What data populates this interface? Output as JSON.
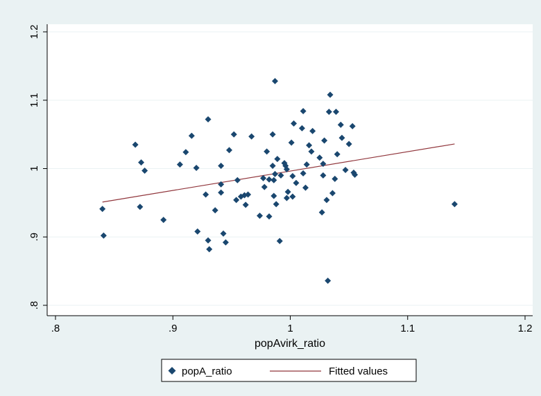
{
  "chart_data": {
    "type": "scatter",
    "title": "",
    "xlabel": "popAvirk_ratio",
    "ylabel": "",
    "xlim": [
      0.8,
      1.2
    ],
    "ylim": [
      0.8,
      1.2
    ],
    "x_ticks": [
      0.8,
      0.9,
      1.0,
      1.1,
      1.2
    ],
    "x_tick_labels": [
      ".8",
      ".9",
      "1",
      "1.1",
      "1.2"
    ],
    "y_ticks": [
      0.8,
      0.9,
      1.0,
      1.1,
      1.2
    ],
    "y_tick_labels": [
      ".8",
      ".9",
      "1",
      "1.1",
      "1.2"
    ],
    "grid": "horizontal",
    "legend_position": "bottom",
    "colors": {
      "background": "#eaf2f3",
      "plot_area": "#ffffff",
      "markers": "#1a476f",
      "fit_line": "#90353b",
      "grid": "#eaf2f3"
    },
    "series": [
      {
        "name": "popA_ratio",
        "kind": "scatter",
        "marker": "diamond",
        "points": [
          [
            0.84,
            0.941
          ],
          [
            0.841,
            0.902
          ],
          [
            0.868,
            1.035
          ],
          [
            0.872,
            0.944
          ],
          [
            0.873,
            1.009
          ],
          [
            0.876,
            0.997
          ],
          [
            0.892,
            0.925
          ],
          [
            0.906,
            1.006
          ],
          [
            0.911,
            1.024
          ],
          [
            0.916,
            1.048
          ],
          [
            0.92,
            1.001
          ],
          [
            0.921,
            0.908
          ],
          [
            0.928,
            0.962
          ],
          [
            0.93,
            1.072
          ],
          [
            0.93,
            0.895
          ],
          [
            0.931,
            0.882
          ],
          [
            0.936,
            0.939
          ],
          [
            0.941,
            1.004
          ],
          [
            0.941,
            0.977
          ],
          [
            0.941,
            0.965
          ],
          [
            0.943,
            0.905
          ],
          [
            0.945,
            0.892
          ],
          [
            0.948,
            1.027
          ],
          [
            0.952,
            1.05
          ],
          [
            0.954,
            0.954
          ],
          [
            0.955,
            0.983
          ],
          [
            0.958,
            0.959
          ],
          [
            0.961,
            0.961
          ],
          [
            0.962,
            0.947
          ],
          [
            0.964,
            0.962
          ],
          [
            0.967,
            1.047
          ],
          [
            0.974,
            0.931
          ],
          [
            0.977,
            0.986
          ],
          [
            0.978,
            0.973
          ],
          [
            0.98,
            1.025
          ],
          [
            0.982,
            0.984
          ],
          [
            0.982,
            0.93
          ],
          [
            0.985,
            1.05
          ],
          [
            0.985,
            1.004
          ],
          [
            0.986,
            0.983
          ],
          [
            0.986,
            0.96
          ],
          [
            0.987,
            1.128
          ],
          [
            0.987,
            0.992
          ],
          [
            0.988,
            0.948
          ],
          [
            0.989,
            1.014
          ],
          [
            0.991,
            0.894
          ],
          [
            0.992,
            0.99
          ],
          [
            0.995,
            1.008
          ],
          [
            0.996,
            1.004
          ],
          [
            0.997,
            0.999
          ],
          [
            0.997,
            0.957
          ],
          [
            0.998,
            0.966
          ],
          [
            1.001,
            1.038
          ],
          [
            1.002,
            0.959
          ],
          [
            1.002,
            0.989
          ],
          [
            1.003,
            1.066
          ],
          [
            1.005,
            0.979
          ],
          [
            1.01,
            1.059
          ],
          [
            1.011,
            0.993
          ],
          [
            1.011,
            1.084
          ],
          [
            1.013,
            0.972
          ],
          [
            1.014,
            1.006
          ],
          [
            1.016,
            1.034
          ],
          [
            1.018,
            1.025
          ],
          [
            1.019,
            1.055
          ],
          [
            1.025,
            1.016
          ],
          [
            1.027,
            0.936
          ],
          [
            1.028,
            1.007
          ],
          [
            1.028,
            0.99
          ],
          [
            1.029,
            1.041
          ],
          [
            1.031,
            0.954
          ],
          [
            1.032,
            0.836
          ],
          [
            1.033,
            1.083
          ],
          [
            1.034,
            1.108
          ],
          [
            1.036,
            0.964
          ],
          [
            1.038,
            0.985
          ],
          [
            1.039,
            1.083
          ],
          [
            1.04,
            1.021
          ],
          [
            1.043,
            1.064
          ],
          [
            1.044,
            1.045
          ],
          [
            1.047,
            0.998
          ],
          [
            1.05,
            1.036
          ],
          [
            1.053,
            1.062
          ],
          [
            1.054,
            0.994
          ],
          [
            1.055,
            0.991
          ],
          [
            1.14,
            0.948
          ]
        ]
      },
      {
        "name": "Fitted values",
        "kind": "line",
        "points": [
          [
            0.84,
            0.951
          ],
          [
            1.14,
            1.036
          ]
        ]
      }
    ]
  }
}
